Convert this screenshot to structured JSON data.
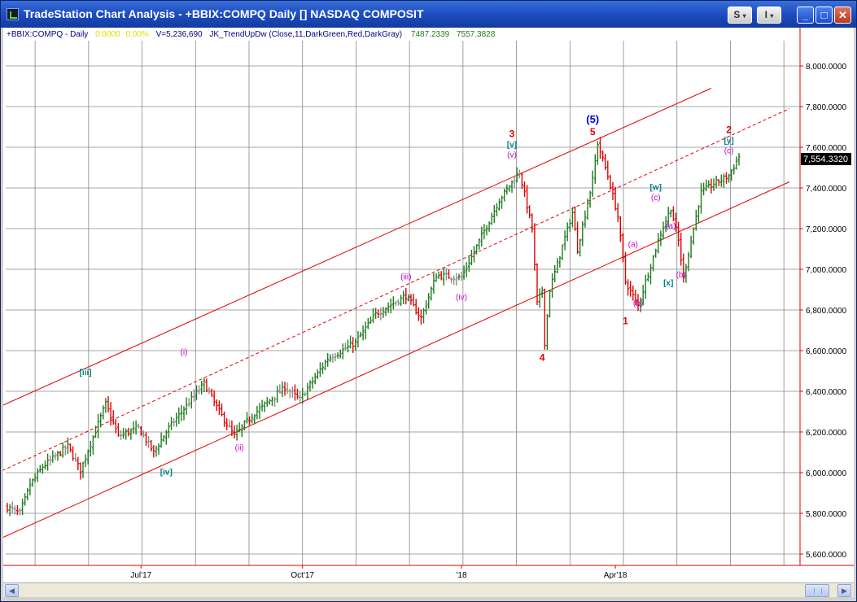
{
  "window": {
    "title": "TradeStation Chart Analysis - +BBIX:COMPQ Daily [] NASDAQ COMPOSIT",
    "buttons": {
      "s_label": "S",
      "i_label": "I",
      "minimize": "_",
      "maximize": "□",
      "close": "✕"
    }
  },
  "legend": {
    "symbol": "+BBIX:COMPQ - Daily",
    "change": "0.0000",
    "change_pct": "0.00%",
    "volume": "V=5,236,690",
    "indicator": "JK_TrendUpDw (Close,11,DarkGreen,Red,DarkGray)",
    "value1": "7487.2339",
    "value2": "7557.3828"
  },
  "colors": {
    "up": "#1f7a1f",
    "down": "#e00000",
    "neutral": "#8c8c8c",
    "channel": "#e00000",
    "grid": "#888888",
    "wave_red": "#e00000",
    "wave_blue": "#0000cc",
    "wave_magenta": "#cc00cc",
    "wave_teal": "#008080"
  },
  "price_readout": "7,554.3320",
  "y_axis": {
    "min": 5600,
    "max": 8000,
    "step": 200,
    "labels": [
      "8,000.0000",
      "7,800.0000",
      "7,600.0000",
      "7,400.0000",
      "7,200.0000",
      "7,000.0000",
      "6,800.0000",
      "6,600.0000",
      "6,400.0000",
      "6,200.0000",
      "6,000.0000",
      "5,800.0000",
      "5,600.0000"
    ]
  },
  "x_axis": {
    "labels": [
      {
        "text": "Jul'17",
        "bar": 53
      },
      {
        "text": "Oct'17",
        "bar": 117
      },
      {
        "text": "'18",
        "bar": 180
      },
      {
        "text": "Apr'18",
        "bar": 241
      }
    ]
  },
  "chart_data": {
    "type": "ohlc",
    "series_name": "+BBIX:COMPQ Daily",
    "bar_count": 290,
    "waypoints": [
      [
        0,
        5830
      ],
      [
        5,
        5800
      ],
      [
        9,
        5940
      ],
      [
        14,
        6030
      ],
      [
        24,
        6130
      ],
      [
        29,
        6010
      ],
      [
        39,
        6340
      ],
      [
        44,
        6180
      ],
      [
        52,
        6220
      ],
      [
        58,
        6100
      ],
      [
        64,
        6220
      ],
      [
        78,
        6440
      ],
      [
        84,
        6300
      ],
      [
        90,
        6180
      ],
      [
        97,
        6280
      ],
      [
        110,
        6420
      ],
      [
        116,
        6360
      ],
      [
        127,
        6560
      ],
      [
        138,
        6640
      ],
      [
        146,
        6780
      ],
      [
        158,
        6870
      ],
      [
        164,
        6760
      ],
      [
        170,
        6970
      ],
      [
        180,
        6960
      ],
      [
        195,
        7340
      ],
      [
        203,
        7480
      ],
      [
        208,
        7200
      ],
      [
        210,
        6830
      ],
      [
        212,
        6900
      ],
      [
        213,
        6640
      ],
      [
        215,
        6900
      ],
      [
        224,
        7280
      ],
      [
        226,
        7100
      ],
      [
        232,
        7440
      ],
      [
        234,
        7620
      ],
      [
        238,
        7460
      ],
      [
        242,
        7260
      ],
      [
        245,
        6940
      ],
      [
        250,
        6820
      ],
      [
        255,
        7020
      ],
      [
        259,
        7180
      ],
      [
        263,
        7300
      ],
      [
        266,
        7140
      ],
      [
        268,
        6960
      ],
      [
        271,
        7140
      ],
      [
        275,
        7380
      ],
      [
        280,
        7420
      ],
      [
        286,
        7460
      ],
      [
        290,
        7554
      ]
    ],
    "wave_labels": [
      {
        "text": "[iii]",
        "bar": 31,
        "price": 6480,
        "color": "teal"
      },
      {
        "text": "[iv]",
        "bar": 63,
        "price": 5990,
        "color": "teal"
      },
      {
        "text": "(i)",
        "bar": 70,
        "price": 6580,
        "color": "magenta"
      },
      {
        "text": "(ii)",
        "bar": 92,
        "price": 6110,
        "color": "magenta"
      },
      {
        "text": "(iii)",
        "bar": 158,
        "price": 6950,
        "color": "magenta"
      },
      {
        "text": "(iv)",
        "bar": 180,
        "price": 6850,
        "color": "magenta"
      },
      {
        "text": "3",
        "bar": 200,
        "price": 7650,
        "color": "red"
      },
      {
        "text": "[v]",
        "bar": 200,
        "price": 7600,
        "color": "teal"
      },
      {
        "text": "(v)",
        "bar": 200,
        "price": 7550,
        "color": "magenta"
      },
      {
        "text": "4",
        "bar": 212,
        "price": 6550,
        "color": "red"
      },
      {
        "text": "(5)",
        "bar": 232,
        "price": 7720,
        "color": "blue"
      },
      {
        "text": "5",
        "bar": 232,
        "price": 7660,
        "color": "red"
      },
      {
        "text": "[w]",
        "bar": 257,
        "price": 7390,
        "color": "teal"
      },
      {
        "text": "(c)",
        "bar": 257,
        "price": 7340,
        "color": "magenta"
      },
      {
        "text": "(a)",
        "bar": 248,
        "price": 7110,
        "color": "magenta"
      },
      {
        "text": "(b)",
        "bar": 250,
        "price": 6820,
        "color": "magenta"
      },
      {
        "text": "1",
        "bar": 245,
        "price": 6730,
        "color": "red"
      },
      {
        "text": "(a)",
        "bar": 263,
        "price": 7200,
        "color": "magenta"
      },
      {
        "text": "[x]",
        "bar": 262,
        "price": 6920,
        "color": "teal"
      },
      {
        "text": "(b)",
        "bar": 267,
        "price": 6960,
        "color": "magenta"
      },
      {
        "text": "2",
        "bar": 286,
        "price": 7670,
        "color": "red"
      },
      {
        "text": "[y]",
        "bar": 286,
        "price": 7620,
        "color": "teal"
      },
      {
        "text": "(c)",
        "bar": 286,
        "price": 7570,
        "color": "magenta"
      }
    ],
    "channel_lines": [
      {
        "style": "solid",
        "from": [
          -2,
          6330
        ],
        "to": [
          279,
          7890
        ]
      },
      {
        "style": "dashed",
        "from": [
          -2,
          6010
        ],
        "to": [
          310,
          7790
        ]
      },
      {
        "style": "solid",
        "from": [
          -2,
          5680
        ],
        "to": [
          310,
          7430
        ]
      }
    ]
  }
}
